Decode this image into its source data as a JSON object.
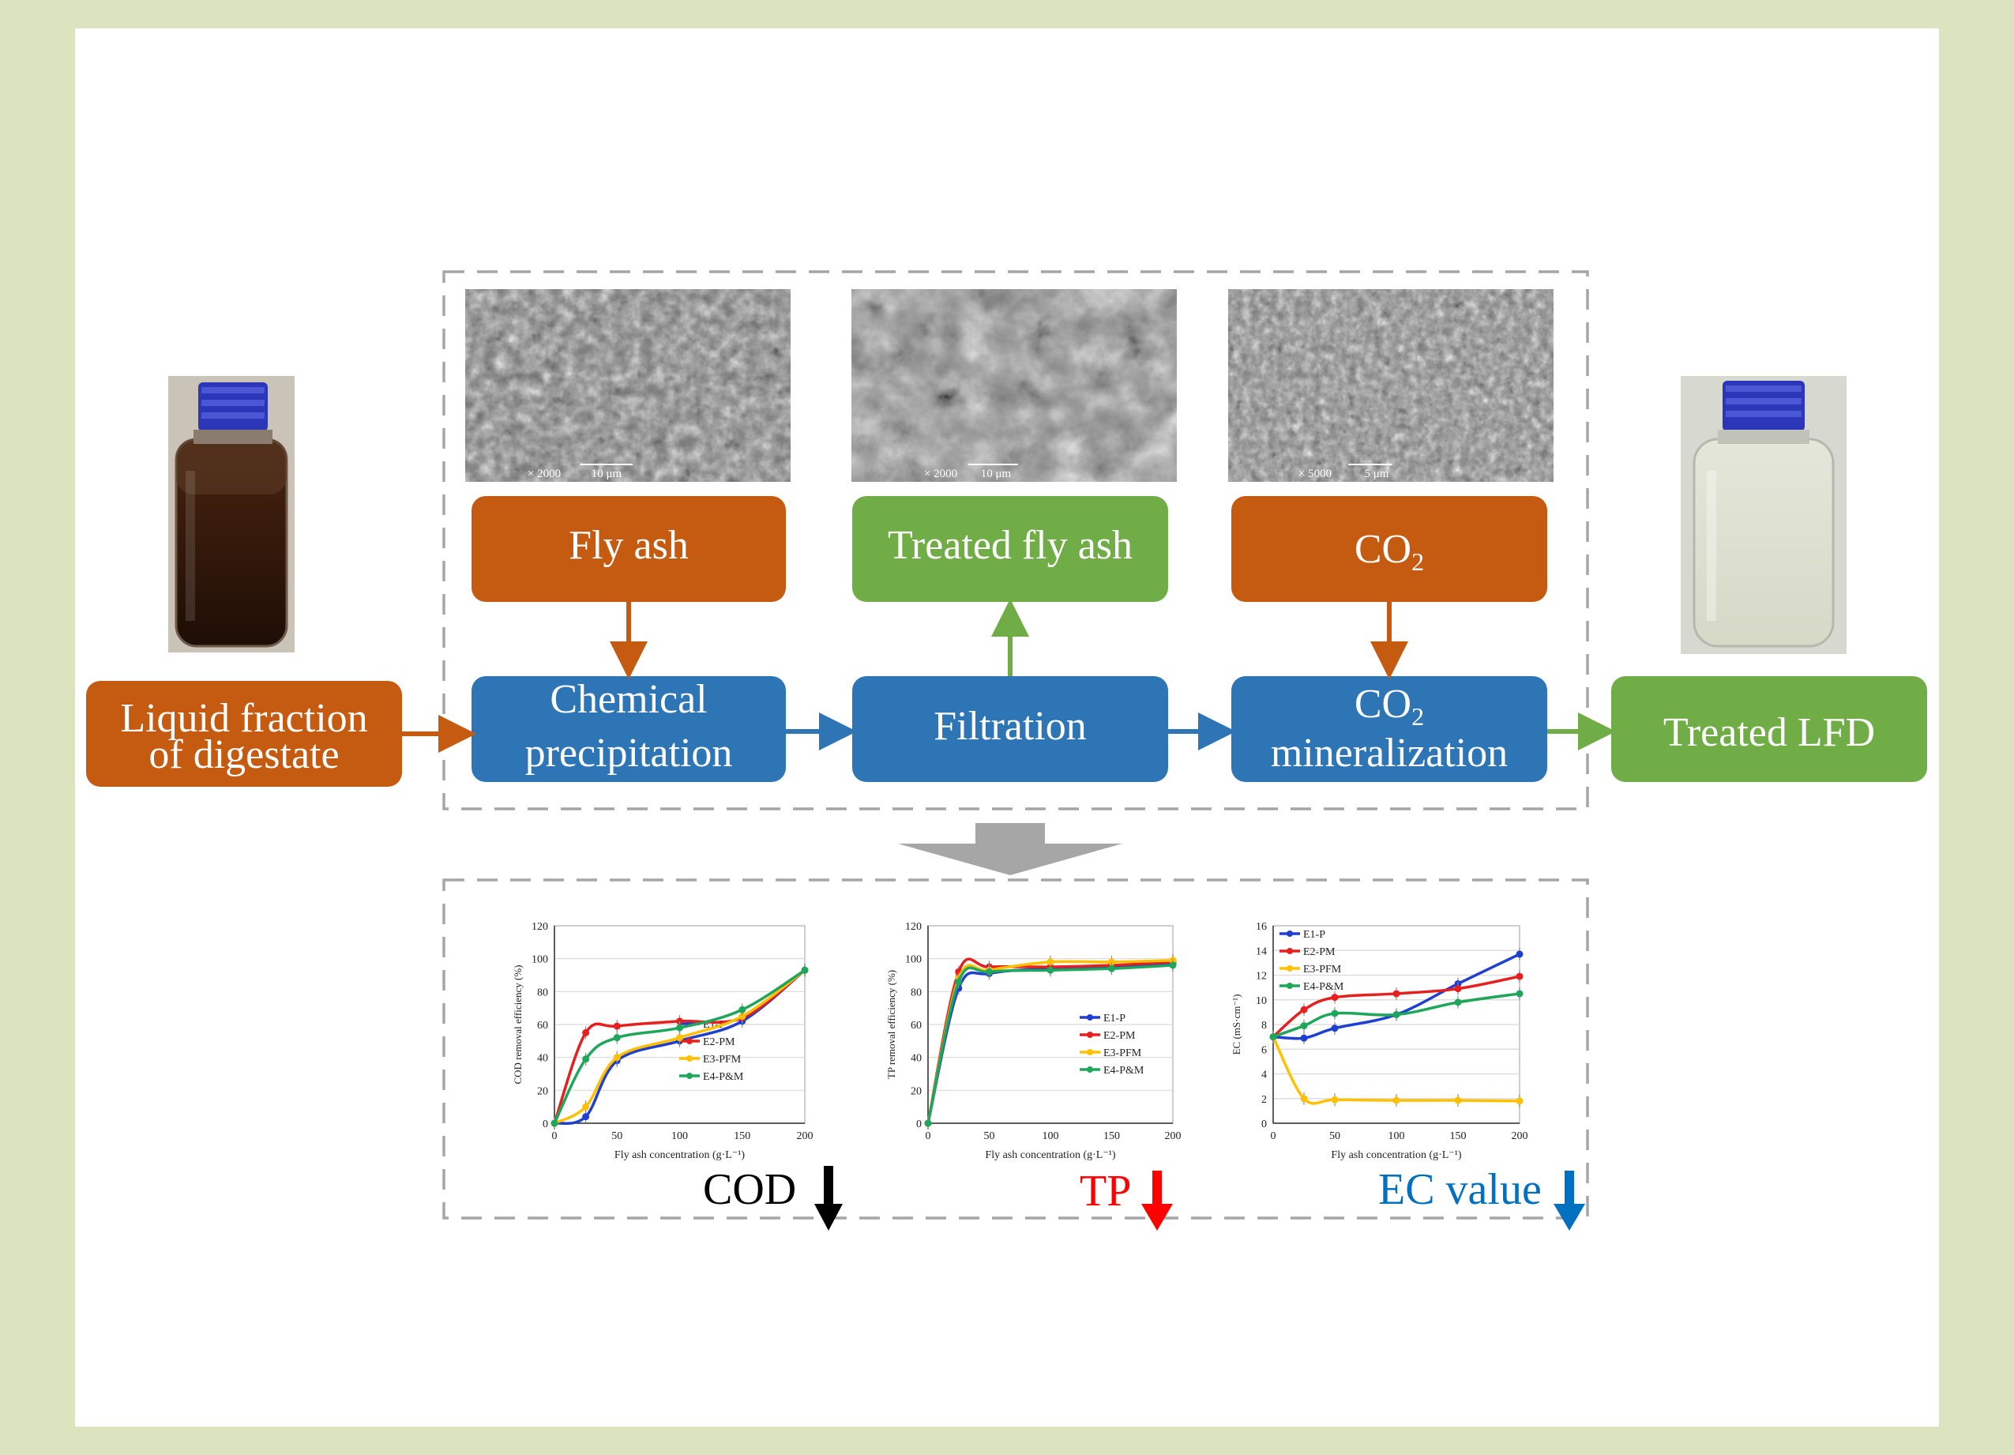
{
  "colors": {
    "orange": "#c55a11",
    "green": "#70ad47",
    "blue": "#2e75b6",
    "background": "#dbe3bf",
    "series": {
      "e1": "#1f3fd1",
      "e2": "#e61f1f",
      "e3": "#ffc000",
      "e4": "#1ea65a"
    },
    "cod_arrow": "#000000",
    "tp_arrow": "#ff0000",
    "ec_arrow": "#0070c0"
  },
  "flow": {
    "input": {
      "line1": "Liquid fraction",
      "line2": "of digestate"
    },
    "fly_ash": "Fly ash",
    "treated_fly_ash": "Treated fly ash",
    "co2": {
      "base": "CO",
      "sub": "2"
    },
    "chemical_precipitation": {
      "line1": "Chemical",
      "line2": "precipitation"
    },
    "filtration": "Filtration",
    "co2_mineralization": {
      "base": "CO",
      "sub": "2",
      "line2": "mineralization"
    },
    "output": "Treated LFD"
  },
  "sem": {
    "img1": {
      "mag": "× 2000",
      "scale": "10 μm"
    },
    "img2": {
      "mag": "× 2000",
      "scale": "10 μm"
    },
    "img3": {
      "mag": "× 5000",
      "scale": "5 μm"
    }
  },
  "outcomes": {
    "cod": "COD",
    "tp": "TP",
    "ec": "EC value"
  },
  "chart_data": [
    {
      "type": "line",
      "xlabel": "Fly ash concentration (g·L⁻¹)",
      "ylabel": "COD removal efficiency (%)",
      "xlim": [
        0,
        200
      ],
      "ylim": [
        0,
        120
      ],
      "xticks": [
        0,
        50,
        100,
        150,
        200
      ],
      "yticks": [
        0,
        20,
        40,
        60,
        80,
        100,
        120
      ],
      "legend_position": "center-right",
      "x": [
        0,
        25,
        50,
        100,
        150,
        200
      ],
      "series": [
        {
          "name": "E1-P",
          "values": [
            0,
            4,
            38,
            50,
            62,
            93
          ]
        },
        {
          "name": "E2-PM",
          "values": [
            0,
            55,
            59,
            62,
            64,
            93
          ]
        },
        {
          "name": "E3-PFM",
          "values": [
            0,
            10,
            40,
            52,
            65,
            93
          ]
        },
        {
          "name": "E4-P&M",
          "values": [
            0,
            39,
            52,
            58,
            69,
            93
          ]
        }
      ]
    },
    {
      "type": "line",
      "xlabel": "Fly ash concentration (g·L⁻¹)",
      "ylabel": "TP removal efficiency (%)",
      "xlim": [
        0,
        200
      ],
      "ylim": [
        0,
        120
      ],
      "xticks": [
        0,
        50,
        100,
        150,
        200
      ],
      "yticks": [
        0,
        20,
        40,
        60,
        80,
        100,
        120
      ],
      "legend_position": "lower-right",
      "x": [
        0,
        25,
        50,
        100,
        150,
        200
      ],
      "series": [
        {
          "name": "E1-P",
          "values": [
            0,
            82,
            91,
            94,
            95,
            97
          ]
        },
        {
          "name": "E2-PM",
          "values": [
            0,
            92,
            95,
            95,
            96,
            98
          ]
        },
        {
          "name": "E3-PFM",
          "values": [
            0,
            88,
            93,
            98,
            98,
            99
          ]
        },
        {
          "name": "E4-P&M",
          "values": [
            0,
            86,
            92,
            93,
            94,
            96
          ]
        }
      ]
    },
    {
      "type": "line",
      "xlabel": "Fly ash concentration (g·L⁻¹)",
      "ylabel": "EC (mS·cm⁻¹)",
      "xlim": [
        0,
        200
      ],
      "ylim": [
        0,
        16
      ],
      "xticks": [
        0,
        50,
        100,
        150,
        200
      ],
      "yticks": [
        0,
        2,
        4,
        6,
        8,
        10,
        12,
        14,
        16
      ],
      "legend_position": "top-left",
      "x": [
        0,
        25,
        50,
        100,
        150,
        200
      ],
      "series": [
        {
          "name": "E1-P",
          "values": [
            7.0,
            6.9,
            7.7,
            8.8,
            11.3,
            13.7
          ]
        },
        {
          "name": "E2-PM",
          "values": [
            7.0,
            9.2,
            10.2,
            10.5,
            10.9,
            11.9
          ]
        },
        {
          "name": "E3-PFM",
          "values": [
            7.0,
            2.0,
            1.9,
            1.85,
            1.85,
            1.8
          ]
        },
        {
          "name": "E4-P&M",
          "values": [
            7.0,
            7.9,
            8.9,
            8.8,
            9.8,
            10.5
          ]
        }
      ]
    }
  ]
}
